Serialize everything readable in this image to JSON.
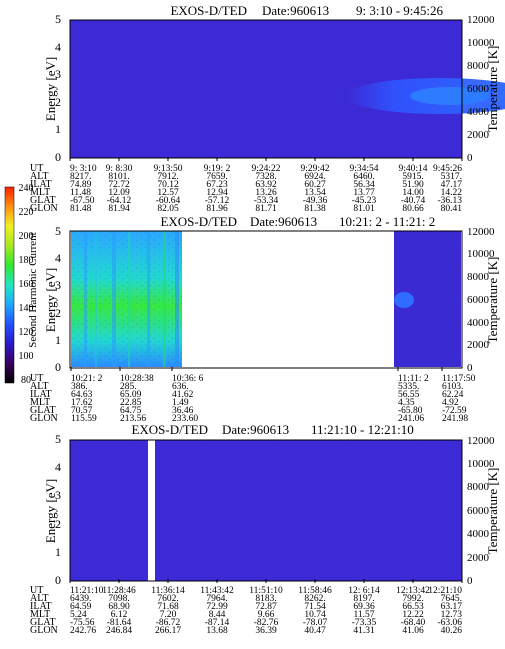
{
  "chart_data": [
    {
      "type": "heatmap",
      "title": "EXOS-D/TED",
      "date_label": "Date:960613",
      "time_range": "9: 3:10 - 9:45:26",
      "ylabel": "Energy [eV]",
      "y2label": "Temperature [K]",
      "ylim": [
        0,
        5
      ],
      "y_ticks": [
        "0",
        "1",
        "2",
        "3",
        "4",
        "5"
      ],
      "y2lim": [
        0,
        12000
      ],
      "y2_ticks": [
        "0",
        "2000",
        "4000",
        "6000",
        "8000",
        "10000",
        "12000"
      ],
      "gaps": [],
      "orbit_table": {
        "row_labels": [
          "UT",
          "ALT",
          "ILAT",
          "MLT",
          "GLAT",
          "GLON"
        ],
        "columns": [
          [
            "9: 3:10",
            "8217.",
            "74.89",
            "11.48",
            "-67.50",
            "81.48"
          ],
          [
            "9: 8:30",
            "8101.",
            "72.72",
            "12.09",
            "-64.12",
            "81.94"
          ],
          [
            "9:13:50",
            "7912.",
            "70.12",
            "12.57",
            "-60.64",
            "82.05"
          ],
          [
            "9:19: 2",
            "7659.",
            "67.23",
            "12.94",
            "-57.12",
            "81.96"
          ],
          [
            "9:24:22",
            "7328.",
            "63.92",
            "13.26",
            "-53.34",
            "81.71"
          ],
          [
            "9:29:42",
            "6924.",
            "60.27",
            "13.54",
            "-49.36",
            "81.38"
          ],
          [
            "9:34:54",
            "6460.",
            "56.34",
            "13.77",
            "-45.23",
            "81.01"
          ],
          [
            "9:40:14",
            "5915.",
            "51.90",
            "14.00",
            "-40.74",
            "80.66"
          ],
          [
            "9:45:26",
            "5317.",
            "47.17",
            "14.22",
            "-36.13",
            "80.41"
          ]
        ]
      }
    },
    {
      "type": "heatmap",
      "title": "EXOS-D/TED",
      "date_label": "Date:960613",
      "time_range": "10:21: 2 - 11:21: 2",
      "ylabel": "Energy [eV]",
      "y2label": "Temperature [K]",
      "ylim": [
        0,
        5
      ],
      "y_ticks": [
        "0",
        "1",
        "2",
        "3",
        "4",
        "5"
      ],
      "y2lim": [
        0,
        12000
      ],
      "y2_ticks": [
        "0",
        "2000",
        "4000",
        "6000",
        "8000",
        "10000",
        "12000"
      ],
      "gaps": [
        [
          0.235,
          0.84
        ]
      ],
      "orbit_table": {
        "row_labels": [
          "UT",
          "ALT",
          "ILAT",
          "MLT",
          "GLAT",
          "GLON"
        ],
        "columns": [
          [
            "10:21: 2",
            "386.",
            "64.63",
            "17.62",
            "70.57",
            "115.59"
          ],
          [
            "10:28:38",
            "285.",
            "65.09",
            "22.85",
            "64.75",
            "213.56"
          ],
          [
            "10:36: 6",
            "636.",
            "41.62",
            "1.49",
            "36.46",
            "233.60"
          ],
          [
            "11:11: 2",
            "5335.",
            "56.55",
            "4.35",
            "-65.80",
            "241.06"
          ],
          [
            "11:17:50",
            "6103.",
            "62.24",
            "4.92",
            "-72.59",
            "241.98"
          ]
        ]
      }
    },
    {
      "type": "heatmap",
      "title": "EXOS-D/TED",
      "date_label": "Date:960613",
      "time_range": "11:21:10 - 12:21:10",
      "ylabel": "Energy [eV]",
      "y2label": "Temperature [K]",
      "ylim": [
        0,
        5
      ],
      "y_ticks": [
        "0",
        "1",
        "2",
        "3",
        "4",
        "5"
      ],
      "y2lim": [
        0,
        12000
      ],
      "y2_ticks": [
        "0",
        "2000",
        "4000",
        "6000",
        "8000",
        "10000",
        "12000"
      ],
      "gaps": [
        [
          0.2,
          0.215
        ]
      ],
      "orbit_table": {
        "row_labels": [
          "UT",
          "ALT",
          "ILAT",
          "MLT",
          "GLAT",
          "GLON"
        ],
        "columns": [
          [
            "11:21:10",
            "6439.",
            "64.59",
            "5.24",
            "-75.56",
            "242.76"
          ],
          [
            "11:28:46",
            "7098.",
            "68.90",
            "6.12",
            "-81.64",
            "246.84"
          ],
          [
            "11:36:14",
            "7602.",
            "71.68",
            "7.20",
            "-86.72",
            "266.17"
          ],
          [
            "11:43:42",
            "7964.",
            "72.99",
            "8.44",
            "-87.14",
            "13.68"
          ],
          [
            "11:51:10",
            "8183.",
            "72.87",
            "9.66",
            "-82.76",
            "36.39"
          ],
          [
            "11:58:46",
            "8262.",
            "71.54",
            "10.74",
            "-78.07",
            "40.47"
          ],
          [
            "12: 6:14",
            "8197.",
            "69.36",
            "11.57",
            "-73.35",
            "41.31"
          ],
          [
            "12:13:42",
            "7992.",
            "66.53",
            "12.22",
            "-68.40",
            "41.06"
          ],
          [
            "12:21:10",
            "7645.",
            "63.17",
            "12.73",
            "-63.06",
            "40.26"
          ]
        ]
      }
    }
  ],
  "colorbar": {
    "label": "Second Harmonic Current",
    "range": [
      80,
      240
    ],
    "ticks": [
      "80",
      "100",
      "120",
      "140",
      "160",
      "180",
      "200",
      "220",
      "240"
    ],
    "colors": [
      "#000000",
      "#3a0060",
      "#2a18c8",
      "#2050ff",
      "#20a8ff",
      "#20e8c0",
      "#30e830",
      "#a8e820",
      "#f0f020",
      "#ff9010",
      "#ff2000"
    ]
  }
}
